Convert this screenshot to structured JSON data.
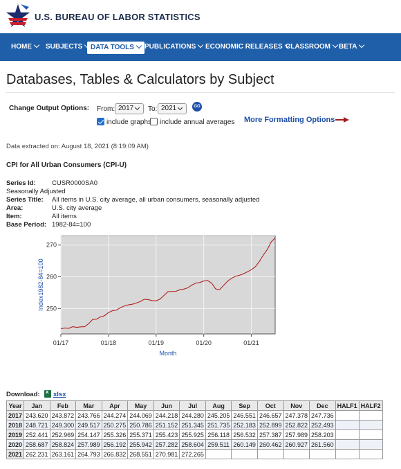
{
  "header": {
    "bureau_name": "U.S. BUREAU OF LABOR STATISTICS",
    "logo_icon": "bls-star-logo-icon"
  },
  "nav": {
    "items": [
      {
        "label": "HOME"
      },
      {
        "label": "SUBJECTS"
      },
      {
        "label": "DATA TOOLS",
        "active": true
      },
      {
        "label": "PUBLICATIONS"
      },
      {
        "label": "ECONOMIC RELEASES"
      },
      {
        "label": "CLASSROOM"
      },
      {
        "label": "BETA"
      }
    ]
  },
  "page": {
    "title": "Databases, Tables & Calculators by Subject"
  },
  "options": {
    "label": "Change Output Options:",
    "from_label": "From:",
    "from_value": "2017",
    "to_label": "To:",
    "to_value": "2021",
    "go_label": "GO",
    "include_graphs_label": "include graphs",
    "include_graphs_checked": true,
    "include_annual_label": "include annual averages",
    "include_annual_checked": false,
    "more_formatting_label": "More Formatting Options",
    "arrow_color": "#a31f1f"
  },
  "extracted": "Data extracted on: August 18, 2021 (8:19:09 AM)",
  "series": {
    "heading": "CPI for All Urban Consumers (CPI-U)",
    "id_label": "Series Id:",
    "id_value": "CUSR0000SA0",
    "adjustment": "Seasonally Adjusted",
    "title_label": "Series Title:",
    "title_value": "All items in U.S. city average, all urban consumers, seasonally adjusted",
    "area_label": "Area:",
    "area_value": "U.S. city average",
    "item_label": "Item:",
    "item_value": "All items",
    "base_label": "Base Period:",
    "base_value": "1982-84=100"
  },
  "chart_data": {
    "type": "line",
    "title": "",
    "xlabel": "Month",
    "ylabel": "Index1982-84=100",
    "x_tick_labels": [
      "01/17",
      "01/18",
      "01/19",
      "01/20",
      "01/21"
    ],
    "y_ticks": [
      250,
      260,
      270
    ],
    "ylim": [
      242,
      273
    ],
    "grid": true,
    "line_color": "#b22222",
    "series": [
      {
        "values": [
          243.62,
          243.872,
          243.766,
          244.274,
          244.069,
          244.218,
          244.28,
          245.205,
          246.551,
          246.657,
          247.378,
          247.736,
          248.721,
          249.3,
          249.517,
          250.275,
          250.786,
          251.152,
          251.345,
          251.735,
          252.183,
          252.899,
          252.822,
          252.493,
          252.441,
          252.969,
          254.147,
          255.326,
          255.371,
          255.423,
          255.925,
          256.118,
          256.532,
          257.387,
          257.989,
          258.203,
          258.687,
          258.824,
          257.989,
          256.192,
          255.942,
          257.282,
          258.604,
          259.511,
          260.149,
          260.462,
          260.927,
          261.56,
          262.231,
          263.161,
          264.793,
          266.832,
          268.551,
          270.981,
          272.265
        ]
      }
    ]
  },
  "download": {
    "label": "Download:",
    "link": "xlsx",
    "icon": "excel-file-icon"
  },
  "table": {
    "headers": [
      "Year",
      "Jan",
      "Feb",
      "Mar",
      "Apr",
      "May",
      "Jun",
      "Jul",
      "Aug",
      "Sep",
      "Oct",
      "Nov",
      "Dec",
      "HALF1",
      "HALF2"
    ],
    "rows": [
      [
        "2017",
        "243.620",
        "243.872",
        "243.766",
        "244.274",
        "244.069",
        "244.218",
        "244.280",
        "245.205",
        "246.551",
        "246.657",
        "247.378",
        "247.736",
        "",
        ""
      ],
      [
        "2018",
        "248.721",
        "249.300",
        "249.517",
        "250.275",
        "250.786",
        "251.152",
        "251.345",
        "251.735",
        "252.183",
        "252.899",
        "252.822",
        "252.493",
        "",
        ""
      ],
      [
        "2019",
        "252.441",
        "252.969",
        "254.147",
        "255.326",
        "255.371",
        "255.423",
        "255.925",
        "256.118",
        "256.532",
        "257.387",
        "257.989",
        "258.203",
        "",
        ""
      ],
      [
        "2020",
        "258.687",
        "258.824",
        "257.989",
        "256.192",
        "255.942",
        "257.282",
        "258.604",
        "259.511",
        "260.149",
        "260.462",
        "260.927",
        "261.560",
        "",
        ""
      ],
      [
        "2021",
        "262.231",
        "263.161",
        "264.793",
        "266.832",
        "268.551",
        "270.981",
        "272.265",
        "",
        "",
        "",
        "",
        "",
        "",
        ""
      ]
    ]
  }
}
